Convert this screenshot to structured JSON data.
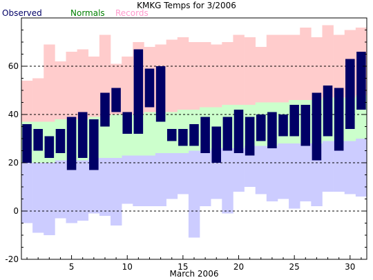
{
  "chart_data": {
    "type": "bar",
    "title": "KMKG Temps for 3/2006",
    "xlabel": "March 2006",
    "ylabel": "",
    "ylim": [
      -20,
      80
    ],
    "xlim": [
      0.5,
      31.5
    ],
    "grid": "dashed horizontal at major ticks",
    "legend_position": "top-left",
    "legend": [
      {
        "label": "Observed",
        "color": "#000066"
      },
      {
        "label": "Normals",
        "color": "#008000"
      },
      {
        "label": "Records",
        "color": "#ff99cc"
      }
    ],
    "x_ticks_labeled": [
      "5",
      "10",
      "15",
      "20",
      "25",
      "30"
    ],
    "y_ticks_labeled": [
      "-20",
      "0",
      "20",
      "40",
      "60"
    ],
    "colors": {
      "observed": "#000066",
      "normals": "#ccffcc",
      "records_high": "#ffcccc",
      "records_low": "#ccccff",
      "grid": "#000000",
      "axis": "#000000"
    },
    "days": [
      1,
      2,
      3,
      4,
      5,
      6,
      7,
      8,
      9,
      10,
      11,
      12,
      13,
      14,
      15,
      16,
      17,
      18,
      19,
      20,
      21,
      22,
      23,
      24,
      25,
      26,
      27,
      28,
      29,
      30,
      31
    ],
    "observed_high": [
      36,
      34,
      31,
      34,
      39,
      41,
      38,
      49,
      51,
      41,
      67,
      59,
      60,
      34,
      34,
      36,
      39,
      35,
      39,
      42,
      39,
      40,
      41,
      40,
      44,
      44,
      49,
      52,
      51,
      63,
      66
    ],
    "observed_low": [
      20,
      25,
      22,
      24,
      17,
      22,
      17,
      35,
      41,
      32,
      32,
      43,
      37,
      29,
      27,
      27,
      24,
      20,
      25,
      24,
      23,
      29,
      26,
      31,
      31,
      27,
      21,
      31,
      25,
      34,
      42
    ],
    "normal_high": [
      37,
      37,
      37,
      38,
      38,
      38,
      39,
      39,
      40,
      40,
      40,
      41,
      41,
      41,
      42,
      42,
      43,
      43,
      44,
      44,
      44,
      45,
      45,
      45,
      46,
      46,
      46,
      47,
      47,
      47,
      48
    ],
    "normal_low": [
      20,
      20,
      20,
      21,
      21,
      21,
      22,
      22,
      22,
      23,
      23,
      23,
      24,
      24,
      24,
      25,
      25,
      26,
      26,
      26,
      27,
      27,
      27,
      28,
      28,
      28,
      28,
      29,
      29,
      29,
      30
    ],
    "record_high": [
      54,
      55,
      69,
      62,
      66,
      67,
      64,
      73,
      61,
      64,
      70,
      68,
      69,
      71,
      72,
      70,
      70,
      69,
      70,
      73,
      72,
      68,
      73,
      73,
      73,
      76,
      72,
      77,
      73,
      75,
      76
    ],
    "record_low": [
      -5,
      -9,
      -10,
      -3,
      -5,
      -4,
      -1,
      -2,
      -6,
      3,
      2,
      2,
      2,
      5,
      7,
      -11,
      2,
      5,
      -1,
      8,
      10,
      7,
      4,
      5,
      1,
      4,
      2,
      8,
      8,
      7,
      6
    ]
  }
}
